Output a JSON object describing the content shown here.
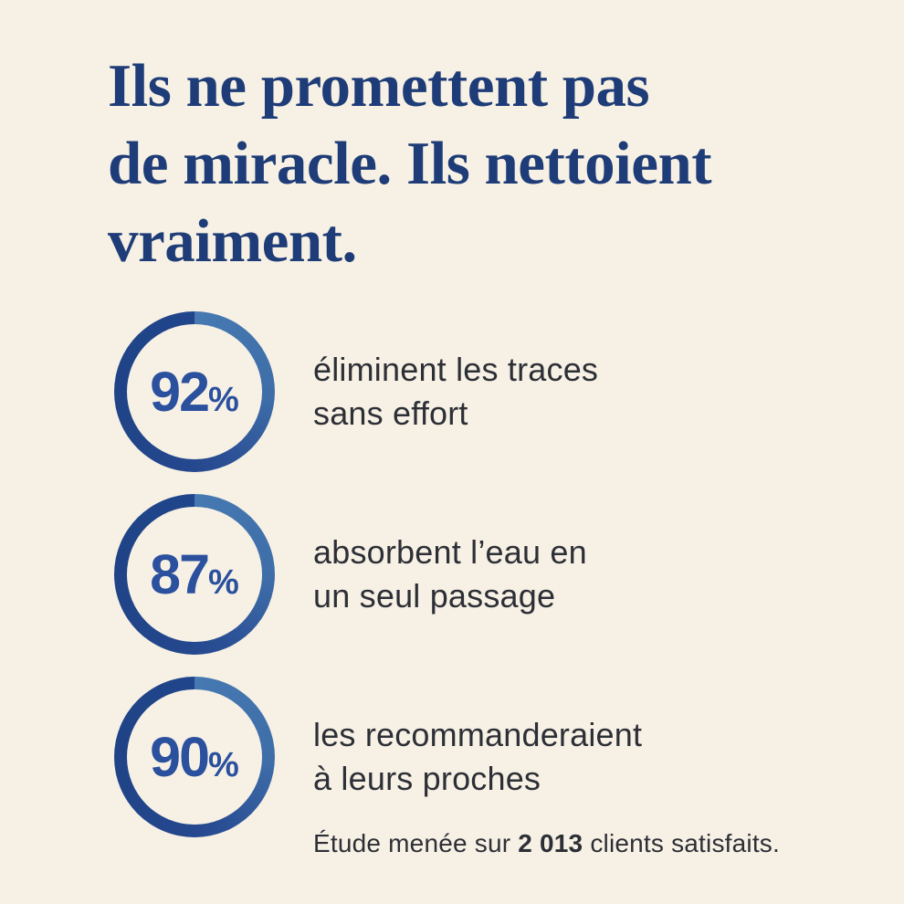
{
  "colors": {
    "background": "#f7f1e5",
    "headline_navy": "#1e3c77",
    "ring_light_blue": "#4679b2",
    "ring_dark_blue": "#1f4386",
    "stat_number_blue": "#2a509e",
    "body_text": "#2d2f36"
  },
  "headline": {
    "lines": [
      "Ils ne promettent pas",
      "de miracle. Ils nettoient",
      "vraiment."
    ],
    "full_text": "Ils ne promettent pas de miracle. Ils nettoient vraiment."
  },
  "stats": [
    {
      "value": "92",
      "unit": "%",
      "lines": [
        "éliminent les traces",
        "sans effort"
      ]
    },
    {
      "value": "87",
      "unit": "%",
      "lines": [
        "absorbent l’eau en",
        "un seul passage"
      ]
    },
    {
      "value": "90",
      "unit": "%",
      "lines": [
        "les recommanderaient",
        "à leurs proches"
      ]
    }
  ],
  "footnote": {
    "prefix": "Étude menée sur",
    "count": "2 013",
    "suffix": "clients satisfaits."
  },
  "chart_data": {
    "type": "donut-stats",
    "title": "Ils ne promettent pas de miracle. Ils nettoient vraiment.",
    "categories": [
      "éliminent les traces sans effort",
      "absorbent l’eau en un seul passage",
      "les recommanderaient à leurs proches"
    ],
    "values": [
      92,
      87,
      90
    ],
    "unit": "%",
    "legend_position": "right-of-ring",
    "source_note": "Étude menée sur 2 013 clients satisfaits.",
    "sample_size": 2013
  }
}
